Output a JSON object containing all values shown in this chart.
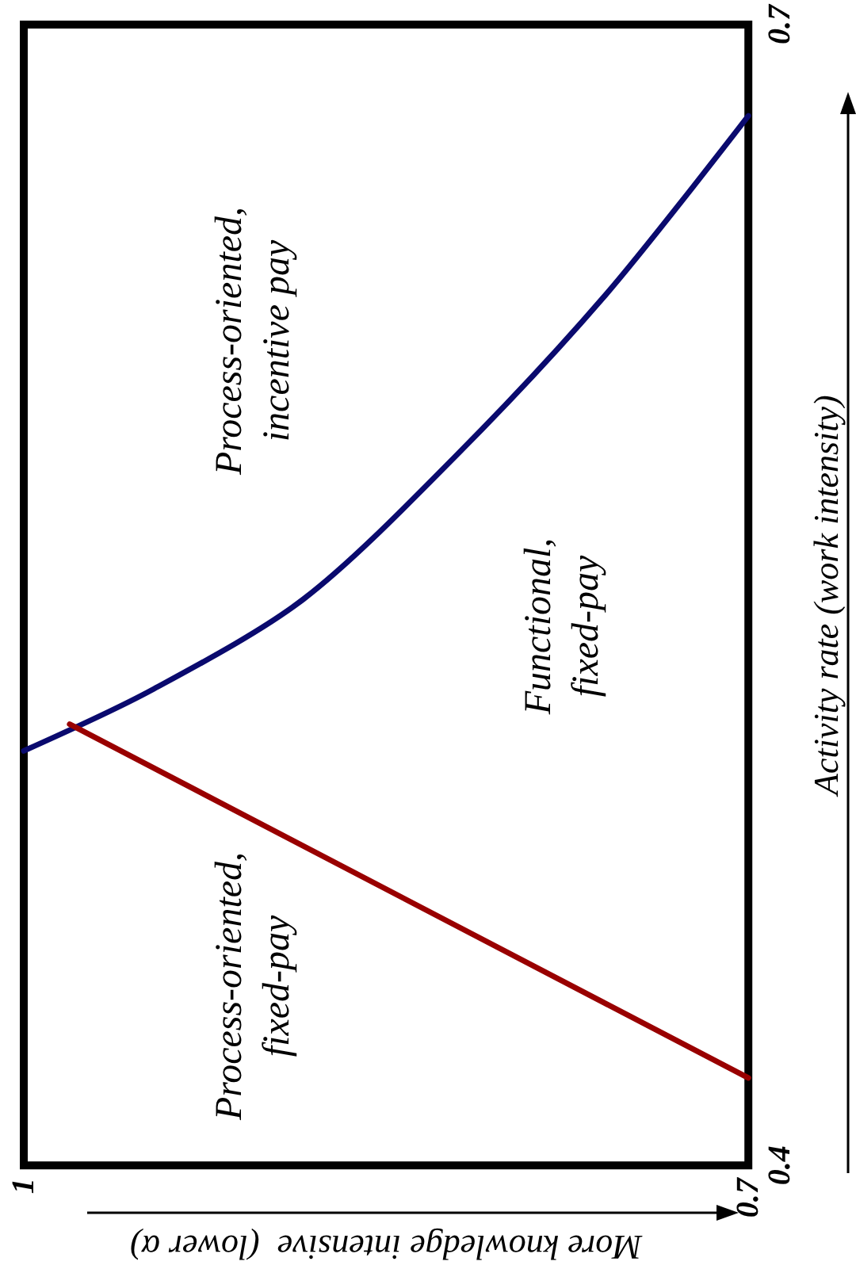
{
  "chart_data": {
    "type": "line",
    "xlabel": "More knowledge intensive  (lower α)",
    "ylabel": "Activity rate (work intensity)",
    "xlim": [
      1,
      0.7
    ],
    "ylim": [
      0.4,
      0.7
    ],
    "xticks": [
      1,
      0.7
    ],
    "yticks": [
      0.4,
      0.7
    ],
    "marker": "none",
    "line_style": "solid",
    "series": [
      {
        "color": "#0a0a6e",
        "x": [
          1,
          0.947,
          0.884,
          0.822,
          0.759,
          0.7
        ],
        "values": [
          0.509,
          0.525,
          0.549,
          0.586,
          0.629,
          0.676
        ]
      },
      {
        "color": "#990000",
        "x": [
          0.981,
          0.7
        ],
        "values": [
          0.516,
          0.423
        ]
      }
    ],
    "annotations": [
      "Process-oriented, incentive pay",
      "Functional, fixed-pay",
      "Process-oriented, fixed-pay"
    ]
  }
}
